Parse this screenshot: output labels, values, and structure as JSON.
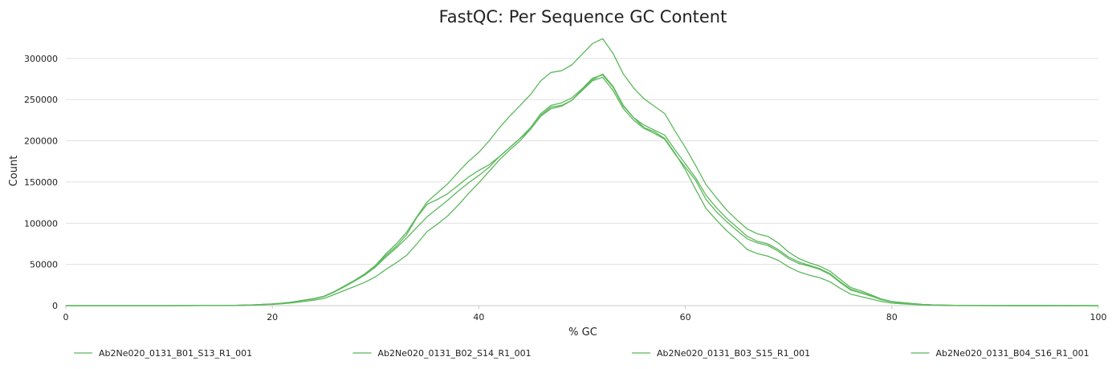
{
  "chart_data": {
    "type": "line",
    "title": "FastQC: Per Sequence GC Content",
    "xlabel": "% GC",
    "ylabel": "Count",
    "xlim": [
      0,
      100
    ],
    "ylim": [
      0,
      330000
    ],
    "xticks": [
      0,
      20,
      40,
      60,
      80,
      100
    ],
    "xtick_labels": [
      "0",
      "20",
      "40",
      "60",
      "80",
      "100"
    ],
    "yticks": [
      0,
      50000,
      100000,
      150000,
      200000,
      250000,
      300000
    ],
    "ytick_labels": [
      "0",
      "50000",
      "100000",
      "150000",
      "200000",
      "250000",
      "300000"
    ],
    "grid": "horizontal",
    "legend_position": "bottom",
    "line_color": "#5cb85c",
    "series": [
      {
        "name": "Ab2Ne020_0131_B01_S13_R1_001",
        "x": [
          0,
          10,
          16,
          18,
          20,
          21,
          22,
          23,
          24,
          25,
          26,
          27,
          28,
          29,
          30,
          31,
          32,
          33,
          34,
          35,
          36,
          37,
          38,
          39,
          40,
          41,
          42,
          43,
          44,
          45,
          46,
          47,
          48,
          49,
          50,
          51,
          52,
          53,
          54,
          55,
          56,
          57,
          58,
          59,
          60,
          61,
          62,
          63,
          64,
          65,
          66,
          67,
          68,
          69,
          70,
          71,
          72,
          73,
          74,
          75,
          76,
          77,
          78,
          79,
          80,
          81,
          82,
          83,
          84,
          86,
          88,
          100
        ],
        "y": [
          0,
          0,
          200,
          800,
          2000,
          3000,
          4500,
          6500,
          8500,
          11500,
          17000,
          24000,
          31000,
          39000,
          49000,
          63000,
          75000,
          89000,
          108000,
          126000,
          137000,
          148000,
          162000,
          175000,
          186000,
          200000,
          216000,
          230000,
          243000,
          256000,
          273000,
          283000,
          285000,
          292000,
          305000,
          318000,
          324000,
          306000,
          281000,
          264000,
          251000,
          242000,
          233000,
          212000,
          192000,
          170000,
          147000,
          131000,
          116000,
          104000,
          93000,
          87000,
          84000,
          76000,
          65000,
          57000,
          52000,
          48000,
          42000,
          32000,
          22000,
          18000,
          13000,
          8000,
          5000,
          3800,
          2500,
          1500,
          900,
          300,
          50,
          0
        ]
      },
      {
        "name": "Ab2Ne020_0131_B02_S14_R1_001",
        "x": [
          0,
          10,
          16,
          18,
          20,
          21,
          22,
          23,
          24,
          25,
          26,
          27,
          28,
          29,
          30,
          31,
          32,
          33,
          34,
          35,
          36,
          37,
          38,
          39,
          40,
          41,
          42,
          43,
          44,
          45,
          46,
          47,
          48,
          49,
          50,
          51,
          52,
          53,
          54,
          55,
          56,
          57,
          58,
          59,
          60,
          61,
          62,
          63,
          64,
          65,
          66,
          67,
          68,
          69,
          70,
          71,
          72,
          73,
          74,
          75,
          76,
          77,
          78,
          79,
          80,
          81,
          82,
          83,
          84,
          86,
          88,
          100
        ],
        "y": [
          0,
          0,
          200,
          800,
          1900,
          2900,
          4300,
          6300,
          8200,
          11000,
          16500,
          23000,
          30000,
          37500,
          47000,
          59000,
          70000,
          82000,
          95000,
          108000,
          118000,
          128000,
          139000,
          149000,
          158000,
          168000,
          181000,
          192000,
          203000,
          214000,
          231000,
          241000,
          243000,
          249000,
          261000,
          273000,
          277000,
          261000,
          239000,
          225000,
          215000,
          209000,
          202000,
          184000,
          168000,
          152000,
          129000,
          114000,
          102000,
          91000,
          81000,
          76000,
          73000,
          66000,
          57000,
          51000,
          48000,
          44000,
          38000,
          28000,
          19000,
          15500,
          11500,
          7000,
          4500,
          3300,
          2200,
          1300,
          800,
          250,
          50,
          0
        ]
      },
      {
        "name": "Ab2Ne020_0131_B03_S15_R1_001",
        "x": [
          0,
          10,
          16,
          18,
          20,
          21,
          22,
          23,
          24,
          25,
          26,
          27,
          28,
          29,
          30,
          31,
          32,
          33,
          34,
          35,
          36,
          37,
          38,
          39,
          40,
          41,
          42,
          43,
          44,
          45,
          46,
          47,
          48,
          49,
          50,
          51,
          52,
          53,
          54,
          55,
          56,
          57,
          58,
          59,
          60,
          61,
          62,
          63,
          64,
          65,
          66,
          67,
          68,
          69,
          70,
          71,
          72,
          73,
          74,
          75,
          76,
          77,
          78,
          79,
          80,
          81,
          82,
          83,
          84,
          86,
          88,
          100
        ],
        "y": [
          0,
          0,
          150,
          600,
          1500,
          2300,
          3400,
          5000,
          6600,
          8800,
          13500,
          18500,
          23500,
          28500,
          35000,
          44000,
          52000,
          61000,
          75000,
          90000,
          99000,
          109000,
          122000,
          136000,
          149000,
          163000,
          177000,
          189000,
          200000,
          214000,
          230000,
          239000,
          242000,
          249000,
          262000,
          274000,
          281000,
          266000,
          243000,
          228000,
          216000,
          211000,
          203000,
          185000,
          165000,
          141000,
          118000,
          104000,
          91000,
          80000,
          68000,
          63000,
          60000,
          55000,
          47000,
          41000,
          37000,
          34000,
          29000,
          21000,
          14000,
          11000,
          8000,
          5000,
          3000,
          2200,
          1500,
          900,
          500,
          150,
          30,
          0
        ]
      },
      {
        "name": "Ab2Ne020_0131_B04_S16_R1_001",
        "x": [
          0,
          10,
          16,
          18,
          20,
          21,
          22,
          23,
          24,
          25,
          26,
          27,
          28,
          29,
          30,
          31,
          32,
          33,
          34,
          35,
          36,
          37,
          38,
          39,
          40,
          41,
          42,
          43,
          44,
          45,
          46,
          47,
          48,
          49,
          50,
          51,
          52,
          53,
          54,
          55,
          56,
          57,
          58,
          59,
          60,
          61,
          62,
          63,
          64,
          65,
          66,
          67,
          68,
          69,
          70,
          71,
          72,
          73,
          74,
          75,
          76,
          77,
          78,
          79,
          80,
          81,
          82,
          83,
          84,
          86,
          88,
          100
        ],
        "y": [
          0,
          0,
          200,
          800,
          2000,
          3000,
          4400,
          6400,
          8400,
          11200,
          16800,
          23500,
          30500,
          38000,
          48000,
          61000,
          72000,
          86000,
          107000,
          123000,
          129000,
          136000,
          146000,
          156000,
          164000,
          171000,
          181000,
          192000,
          203000,
          216000,
          233000,
          243000,
          246000,
          252000,
          263000,
          276000,
          280000,
          265000,
          242000,
          228000,
          219000,
          213000,
          207000,
          189000,
          172000,
          155000,
          134000,
          119000,
          106000,
          95000,
          84000,
          78000,
          75000,
          68000,
          59000,
          53000,
          49000,
          45000,
          39000,
          29000,
          20000,
          16000,
          12000,
          7500,
          4800,
          3500,
          2300,
          1400,
          850,
          280,
          50,
          0
        ]
      }
    ]
  }
}
